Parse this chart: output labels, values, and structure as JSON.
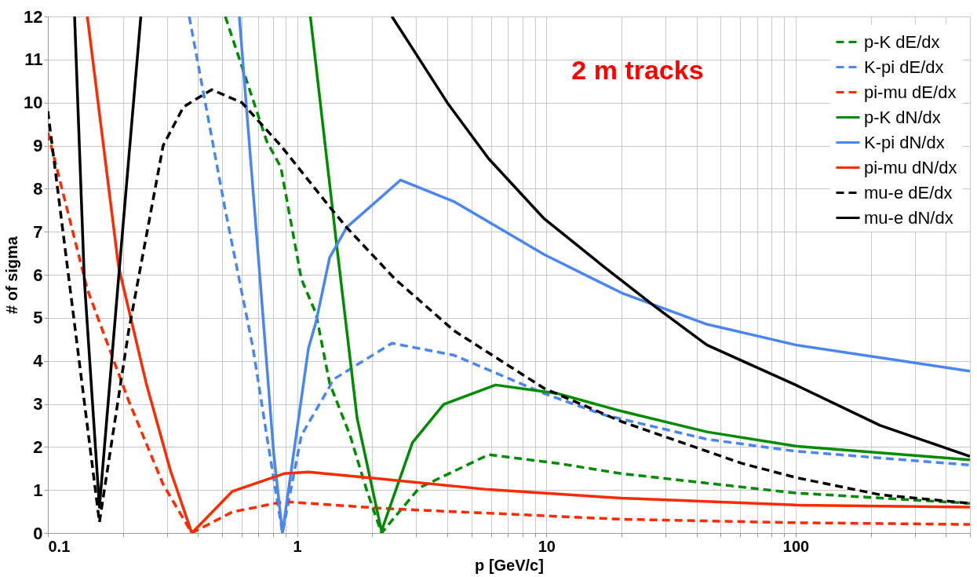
{
  "chart_data": {
    "type": "line",
    "xlabel": "p [GeV/c]",
    "ylabel": "# of sigma",
    "annotations": [
      "2 m tracks"
    ],
    "log": "x",
    "grid": true,
    "legend": "top right",
    "xlim": [
      0.1,
      500
    ],
    "ylim": [
      0,
      12
    ],
    "xticks": [
      0.1,
      {
        "value": 0.2,
        "label": null
      },
      {
        "value": 0.3,
        "label": null
      },
      {
        "value": 0.4,
        "label": null
      },
      {
        "value": 0.5,
        "label": null
      },
      {
        "value": 0.6,
        "label": null
      },
      {
        "value": 0.7,
        "label": null
      },
      {
        "value": 0.8,
        "label": null
      },
      {
        "value": 0.9,
        "label": null
      },
      1,
      {
        "value": 2,
        "label": null
      },
      {
        "value": 3,
        "label": null
      },
      {
        "value": 4,
        "label": null
      },
      {
        "value": 5,
        "label": null
      },
      {
        "value": 6,
        "label": null
      },
      {
        "value": 7,
        "label": null
      },
      {
        "value": 8,
        "label": null
      },
      {
        "value": 9,
        "label": null
      },
      10,
      {
        "value": 20,
        "label": null
      },
      {
        "value": 30,
        "label": null
      },
      {
        "value": 40,
        "label": null
      },
      {
        "value": 50,
        "label": null
      },
      {
        "value": 60,
        "label": null
      },
      {
        "value": 70,
        "label": null
      },
      {
        "value": 80,
        "label": null
      },
      {
        "value": 90,
        "label": null
      },
      100,
      {
        "value": 200,
        "label": null
      },
      {
        "value": 300,
        "label": null
      },
      {
        "value": 400,
        "label": null
      },
      {
        "value": 500,
        "label": null
      }
    ],
    "yticks": [
      0,
      1,
      2,
      3,
      4,
      5,
      6,
      7,
      8,
      9,
      10,
      11,
      12
    ],
    "series": [
      {
        "name": "p-K dE/dx",
        "color": "#008c00",
        "line_style": "dashed",
        "x": [
          0.515,
          0.755,
          0.86,
          1.04,
          1.19,
          1.35,
          1.63,
          1.9,
          2.18,
          3.09,
          5.86,
          11.1,
          20,
          100,
          500
        ],
        "values": [
          12,
          9.1,
          8.5,
          5.9,
          5.1,
          3.48,
          2.27,
          1.0,
          0,
          1.05,
          1.82,
          1.62,
          1.38,
          0.93,
          0.69
        ]
      },
      {
        "name": "K-pi dE/dx",
        "color": "#4a86f0",
        "line_style": "dashed",
        "x": [
          0.369,
          0.515,
          0.665,
          0.755,
          0.873,
          1.04,
          1.35,
          1.39,
          2.4,
          4.26,
          9.8,
          16.9,
          44,
          100,
          500
        ],
        "values": [
          12,
          7.5,
          4.3,
          2.27,
          0,
          2.27,
          3.4,
          3.56,
          4.41,
          4.13,
          3.24,
          2.75,
          2.18,
          1.9,
          1.58
        ]
      },
      {
        "name": "pi-mu dE/dx",
        "color": "#ff2a00",
        "line_style": "dashed",
        "x": [
          0.1,
          0.144,
          0.211,
          0.29,
          0.378,
          0.55,
          0.885,
          2.25,
          20,
          100,
          500
        ],
        "values": [
          9.3,
          5.66,
          3.07,
          1.13,
          0,
          0.49,
          0.73,
          0.57,
          0.32,
          0.24,
          0.2
        ]
      },
      {
        "name": "p-K dN/dx",
        "color": "#008c00",
        "line_style": "solid",
        "x": [
          1.13,
          1.44,
          1.74,
          2.18,
          2.9,
          3.87,
          6.25,
          11.1,
          20,
          44,
          100,
          500
        ],
        "values": [
          12,
          6.7,
          2.67,
          0.05,
          2.1,
          2.99,
          3.44,
          3.24,
          2.83,
          2.35,
          2.02,
          1.7
        ]
      },
      {
        "name": "K-pi dN/dx",
        "color": "#4a86f0",
        "line_style": "solid",
        "x": [
          0.586,
          0.71,
          0.805,
          0.873,
          1.11,
          1.19,
          1.35,
          1.58,
          2.6,
          4.26,
          9.8,
          20,
          44,
          100,
          500
        ],
        "values": [
          12,
          5.9,
          1.86,
          0,
          4.29,
          4.9,
          6.4,
          7.1,
          8.2,
          7.7,
          6.47,
          5.58,
          4.85,
          4.37,
          3.76
        ]
      },
      {
        "name": "pi-mu dN/dx",
        "color": "#ff2a00",
        "line_style": "solid",
        "x": [
          0.144,
          0.192,
          0.248,
          0.31,
          0.378,
          0.55,
          0.885,
          1.11,
          2.25,
          5.86,
          20,
          100,
          500
        ],
        "values": [
          12,
          6.2,
          3.48,
          1.46,
          0,
          0.97,
          1.38,
          1.42,
          1.25,
          1.01,
          0.81,
          0.65,
          0.6
        ]
      },
      {
        "name": "mu-e dE/dx",
        "color": "#000000",
        "line_style": "dashed",
        "x": [
          0.1,
          0.161,
          0.211,
          0.29,
          0.35,
          0.454,
          0.6,
          0.86,
          1.34,
          1.58,
          2.47,
          4.26,
          9.8,
          20,
          60.7,
          100,
          218,
          500
        ],
        "values": [
          9.8,
          0.25,
          4.7,
          9.0,
          9.9,
          10.3,
          10.0,
          9.0,
          7.6,
          7.1,
          5.9,
          4.7,
          3.36,
          2.59,
          1.62,
          1.29,
          0.89,
          0.69
        ]
      },
      {
        "name": "mu-e dN/dx",
        "color": "#000000",
        "line_style": "solid",
        "x": [
          0.128,
          0.14,
          0.161,
          0.192,
          0.236,
          1.0,
          2.4,
          4.0,
          5.86,
          9.8,
          16.9,
          27.3,
          44,
          100,
          218,
          500
        ],
        "values": [
          12,
          5.9,
          0.6,
          5.9,
          12,
          null,
          12,
          10.0,
          8.7,
          7.3,
          6.2,
          5.26,
          4.37,
          3.44,
          2.5,
          1.78
        ]
      }
    ]
  }
}
